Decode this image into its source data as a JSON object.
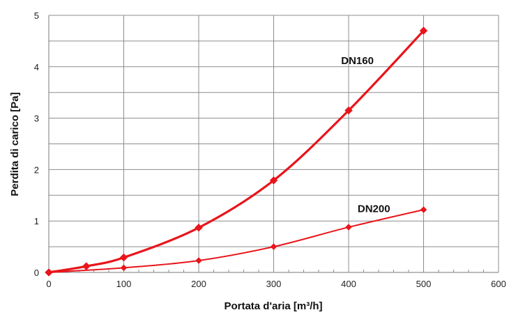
{
  "chart_data": {
    "type": "line",
    "title": "",
    "xlabel": "Portata d'aria [m³/h]",
    "ylabel": "Perdita di carico [Pa]",
    "xlim": [
      0,
      600
    ],
    "ylim": [
      0,
      5
    ],
    "xticks": [
      0,
      100,
      200,
      300,
      400,
      500,
      600
    ],
    "yticks": [
      0,
      1,
      2,
      3,
      4,
      5
    ],
    "x_minor_step": 20,
    "y_minor_step": 0.5,
    "grid": true,
    "legend": "none",
    "series": [
      {
        "name": "DN160",
        "color": "#e8151b",
        "points": [
          [
            0,
            0.0
          ],
          [
            50,
            0.12
          ],
          [
            100,
            0.29
          ],
          [
            200,
            0.87
          ],
          [
            300,
            1.79
          ],
          [
            400,
            3.15
          ],
          [
            500,
            4.7
          ]
        ]
      },
      {
        "name": "DN200",
        "color": "#e8151b",
        "points": [
          [
            0,
            0.0
          ],
          [
            100,
            0.09
          ],
          [
            200,
            0.23
          ],
          [
            300,
            0.5
          ],
          [
            400,
            0.88
          ],
          [
            500,
            1.22
          ]
        ]
      }
    ]
  }
}
